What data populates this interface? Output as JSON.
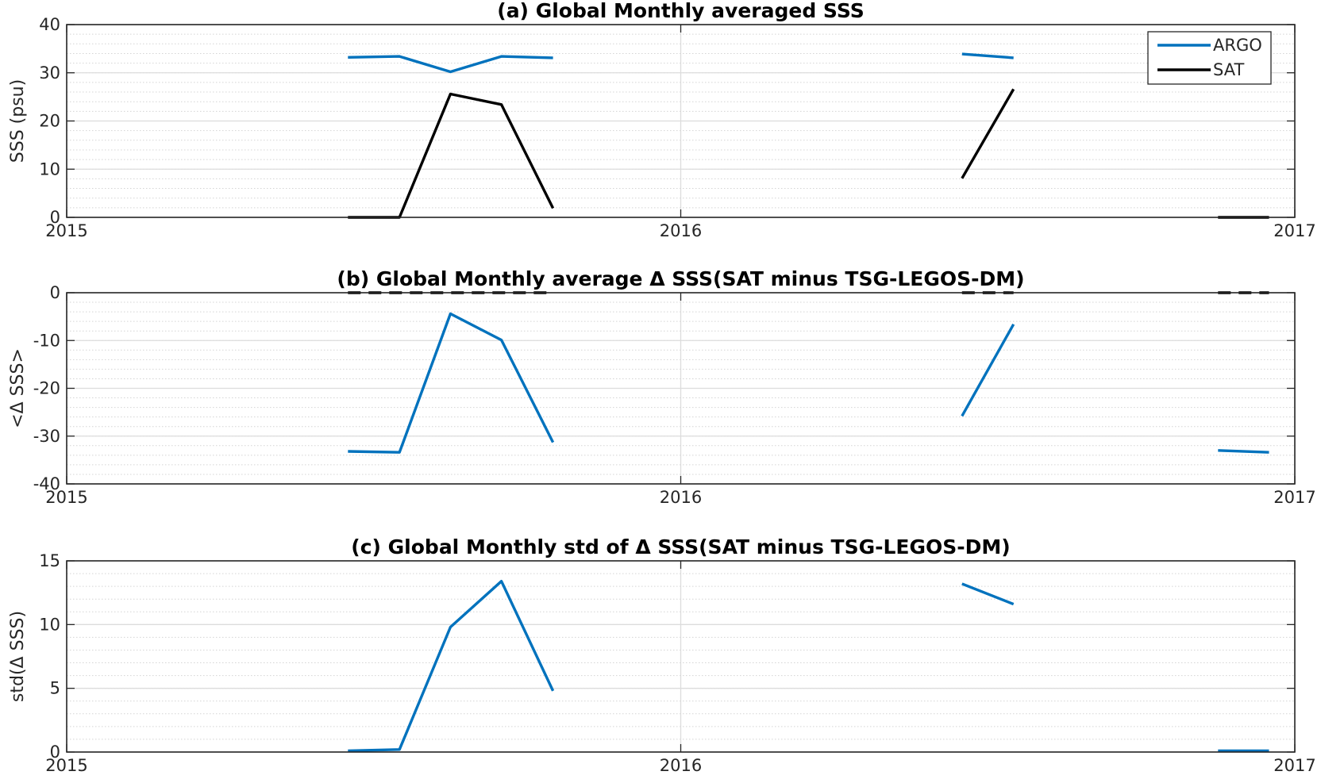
{
  "chart_data": [
    {
      "type": "line",
      "title": "(a) Global Monthly averaged SSS",
      "xlabel": "",
      "ylabel": "SSS (psu)",
      "xlim": [
        2015,
        2017
      ],
      "ylim": [
        0,
        40
      ],
      "yticks": [
        "0",
        "10",
        "20",
        "30",
        "40"
      ],
      "xticks": [
        "2015",
        "2016",
        "2017"
      ],
      "grid": true,
      "legend": {
        "location": "top-right",
        "entries": [
          "ARGO",
          "SAT"
        ]
      },
      "series": [
        {
          "name": "ARGO",
          "color": "#0072BD",
          "style": "solid",
          "segments": [
            [
              [
                2015.458,
                33.2
              ],
              [
                2015.542,
                33.4
              ],
              [
                2015.625,
                30.2
              ],
              [
                2015.708,
                33.4
              ],
              [
                2015.792,
                33.1
              ]
            ],
            [
              [
                2016.458,
                33.9
              ],
              [
                2016.542,
                33.1
              ]
            ]
          ]
        },
        {
          "name": "SAT",
          "color": "#000000",
          "style": "solid",
          "segments": [
            [
              [
                2015.458,
                0.0
              ],
              [
                2015.542,
                0.0
              ],
              [
                2015.625,
                25.6
              ],
              [
                2015.708,
                23.4
              ],
              [
                2015.792,
                1.9
              ]
            ],
            [
              [
                2016.458,
                8.1
              ],
              [
                2016.542,
                26.6
              ]
            ],
            [
              [
                2016.875,
                0.0
              ],
              [
                2016.958,
                0.0
              ]
            ]
          ]
        }
      ]
    },
    {
      "type": "line",
      "title": "(b) Global Monthly average Δ SSS(SAT minus TSG-LEGOS-DM)",
      "xlabel": "",
      "ylabel": "<Δ SSS>",
      "xlim": [
        2015,
        2017
      ],
      "ylim": [
        -40,
        0
      ],
      "yticks": [
        "-40",
        "-30",
        "-20",
        "-10",
        "0"
      ],
      "xticks": [
        "2015",
        "2016",
        "2017"
      ],
      "grid": true,
      "series": [
        {
          "color": "#0072BD",
          "style": "solid",
          "segments": [
            [
              [
                2015.458,
                -33.2
              ],
              [
                2015.542,
                -33.4
              ],
              [
                2015.625,
                -4.4
              ],
              [
                2015.708,
                -9.9
              ],
              [
                2015.792,
                -31.3
              ]
            ],
            [
              [
                2016.458,
                -25.8
              ],
              [
                2016.542,
                -6.6
              ]
            ],
            [
              [
                2016.875,
                -33.0
              ],
              [
                2016.958,
                -33.4
              ]
            ]
          ]
        },
        {
          "color": "#000000",
          "style": "dashed",
          "segments": [
            [
              [
                2015.458,
                0.0
              ],
              [
                2015.542,
                0.0
              ],
              [
                2015.625,
                0.0
              ],
              [
                2015.708,
                0.0
              ],
              [
                2015.792,
                0.0
              ]
            ],
            [
              [
                2016.458,
                0.0
              ],
              [
                2016.542,
                0.0
              ]
            ],
            [
              [
                2016.875,
                0.0
              ],
              [
                2016.958,
                0.0
              ]
            ]
          ]
        }
      ]
    },
    {
      "type": "line",
      "title": "(c) Global Monthly std of Δ SSS(SAT minus TSG-LEGOS-DM)",
      "xlabel": "",
      "ylabel": "std(Δ SSS)",
      "xlim": [
        2015,
        2017
      ],
      "ylim": [
        0,
        15
      ],
      "yticks": [
        "0",
        "5",
        "10",
        "15"
      ],
      "xticks": [
        "2015",
        "2016",
        "2017"
      ],
      "grid": true,
      "series": [
        {
          "color": "#0072BD",
          "style": "solid",
          "segments": [
            [
              [
                2015.458,
                0.1
              ],
              [
                2015.542,
                0.2
              ],
              [
                2015.625,
                9.8
              ],
              [
                2015.708,
                13.4
              ],
              [
                2015.792,
                4.8
              ]
            ],
            [
              [
                2016.458,
                13.2
              ],
              [
                2016.542,
                11.6
              ]
            ],
            [
              [
                2016.875,
                0.1
              ],
              [
                2016.958,
                0.1
              ]
            ]
          ]
        }
      ]
    }
  ]
}
